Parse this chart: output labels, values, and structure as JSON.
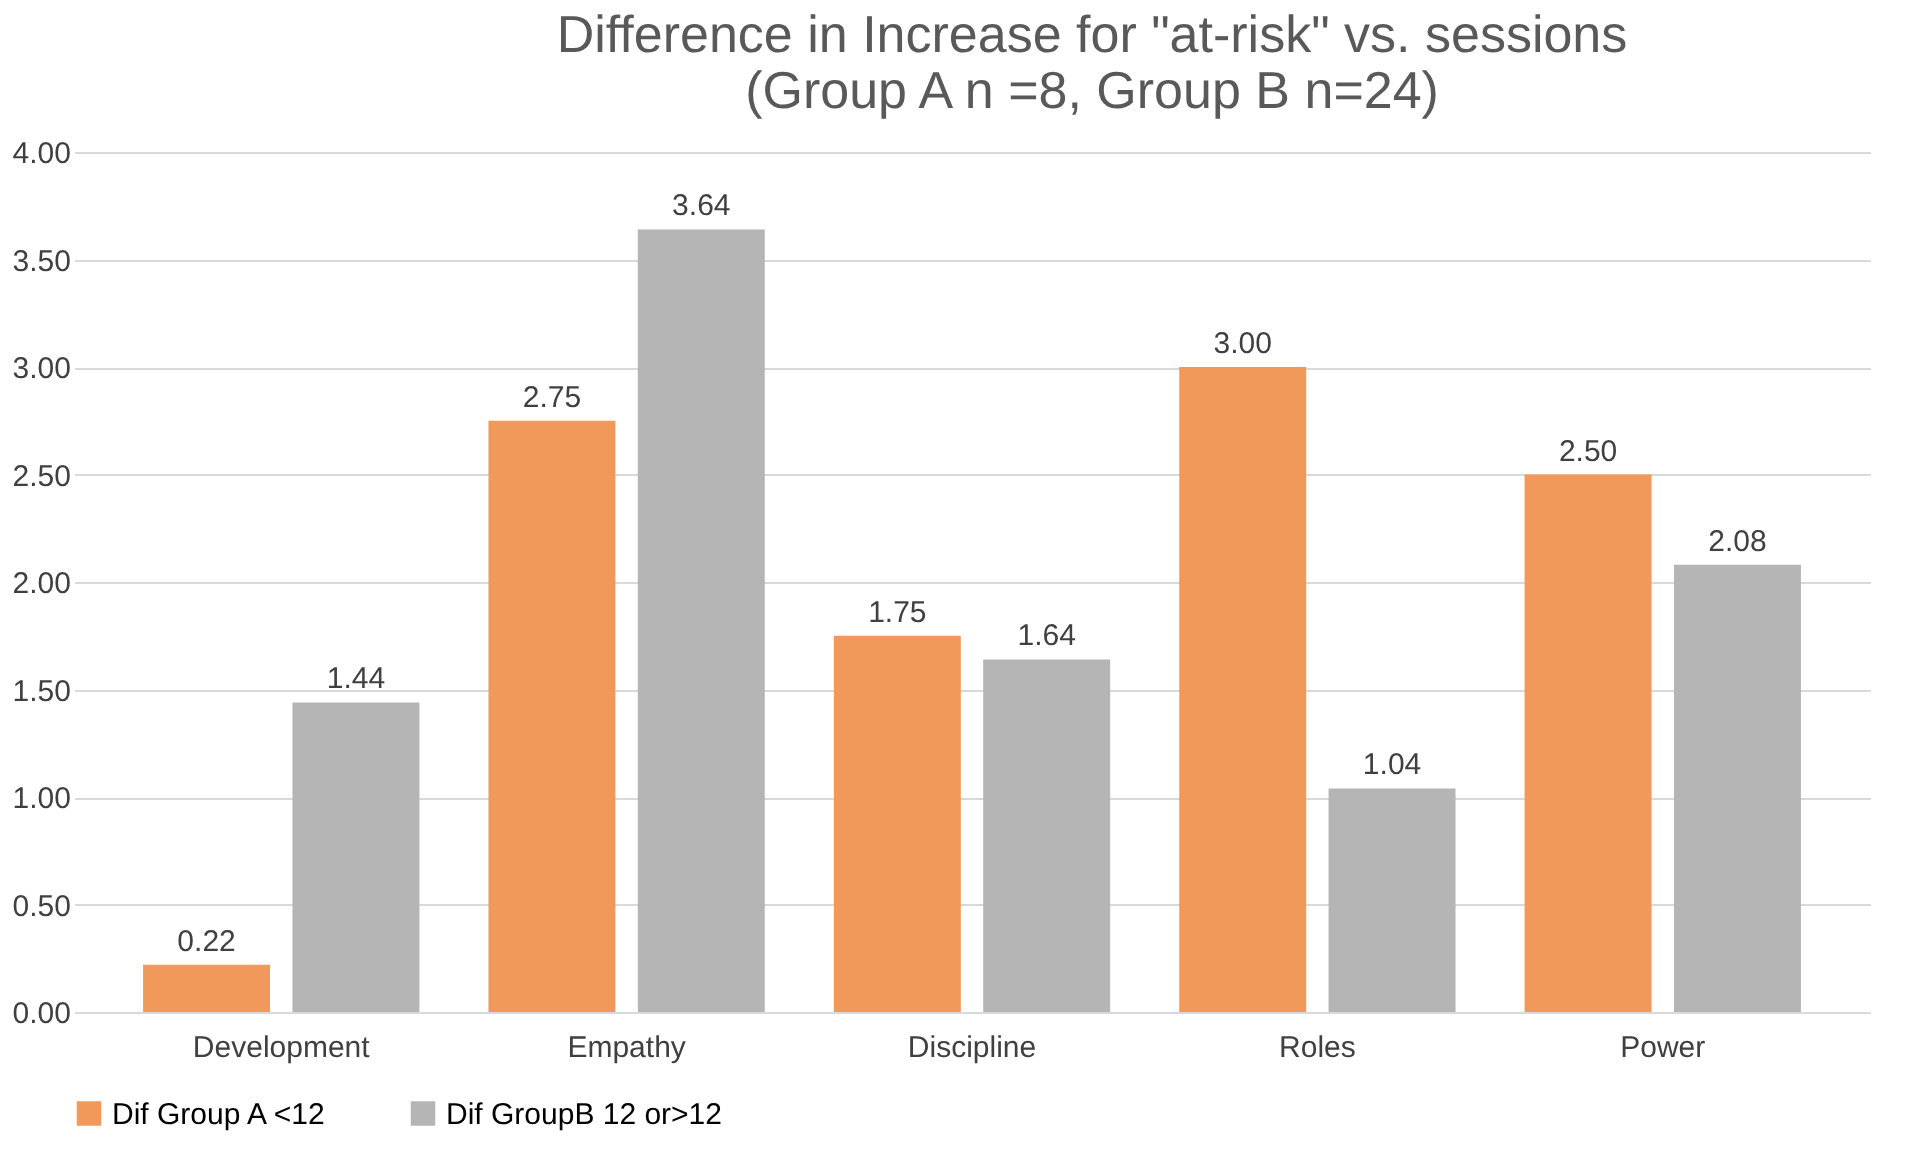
{
  "chart_data": {
    "type": "bar",
    "title": "Difference in Increase for \"at-risk\" vs. sessions\n(Group A n =8, Group B n=24)",
    "categories": [
      "Development",
      "Empathy",
      "Discipline",
      "Roles",
      "Power"
    ],
    "series": [
      {
        "name": "Dif Group A <12",
        "color": "#f0995a",
        "values": [
          0.22,
          2.75,
          1.75,
          3.0,
          2.5
        ],
        "value_labels": [
          "0.22",
          "2.75",
          "1.75",
          "3.00",
          "2.50"
        ]
      },
      {
        "name": "Dif GroupB 12 or>12",
        "color": "#b5b5b5",
        "values": [
          1.44,
          3.64,
          1.64,
          1.04,
          2.08
        ],
        "value_labels": [
          "1.44",
          "3.64",
          "1.64",
          "1.04",
          "2.08"
        ]
      }
    ],
    "ylim": [
      0,
      4
    ],
    "yticks": [
      {
        "value": 0,
        "label": "0.00"
      },
      {
        "value": 0.5,
        "label": "0.50"
      },
      {
        "value": 1,
        "label": "1.00"
      },
      {
        "value": 1.5,
        "label": "1.50"
      },
      {
        "value": 2,
        "label": "2.00"
      },
      {
        "value": 2.5,
        "label": "2.50"
      },
      {
        "value": 3,
        "label": "3.00"
      },
      {
        "value": 3.5,
        "label": "3.50"
      },
      {
        "value": 4,
        "label": "4.00"
      }
    ],
    "grid": "y",
    "legend": "bottom"
  }
}
